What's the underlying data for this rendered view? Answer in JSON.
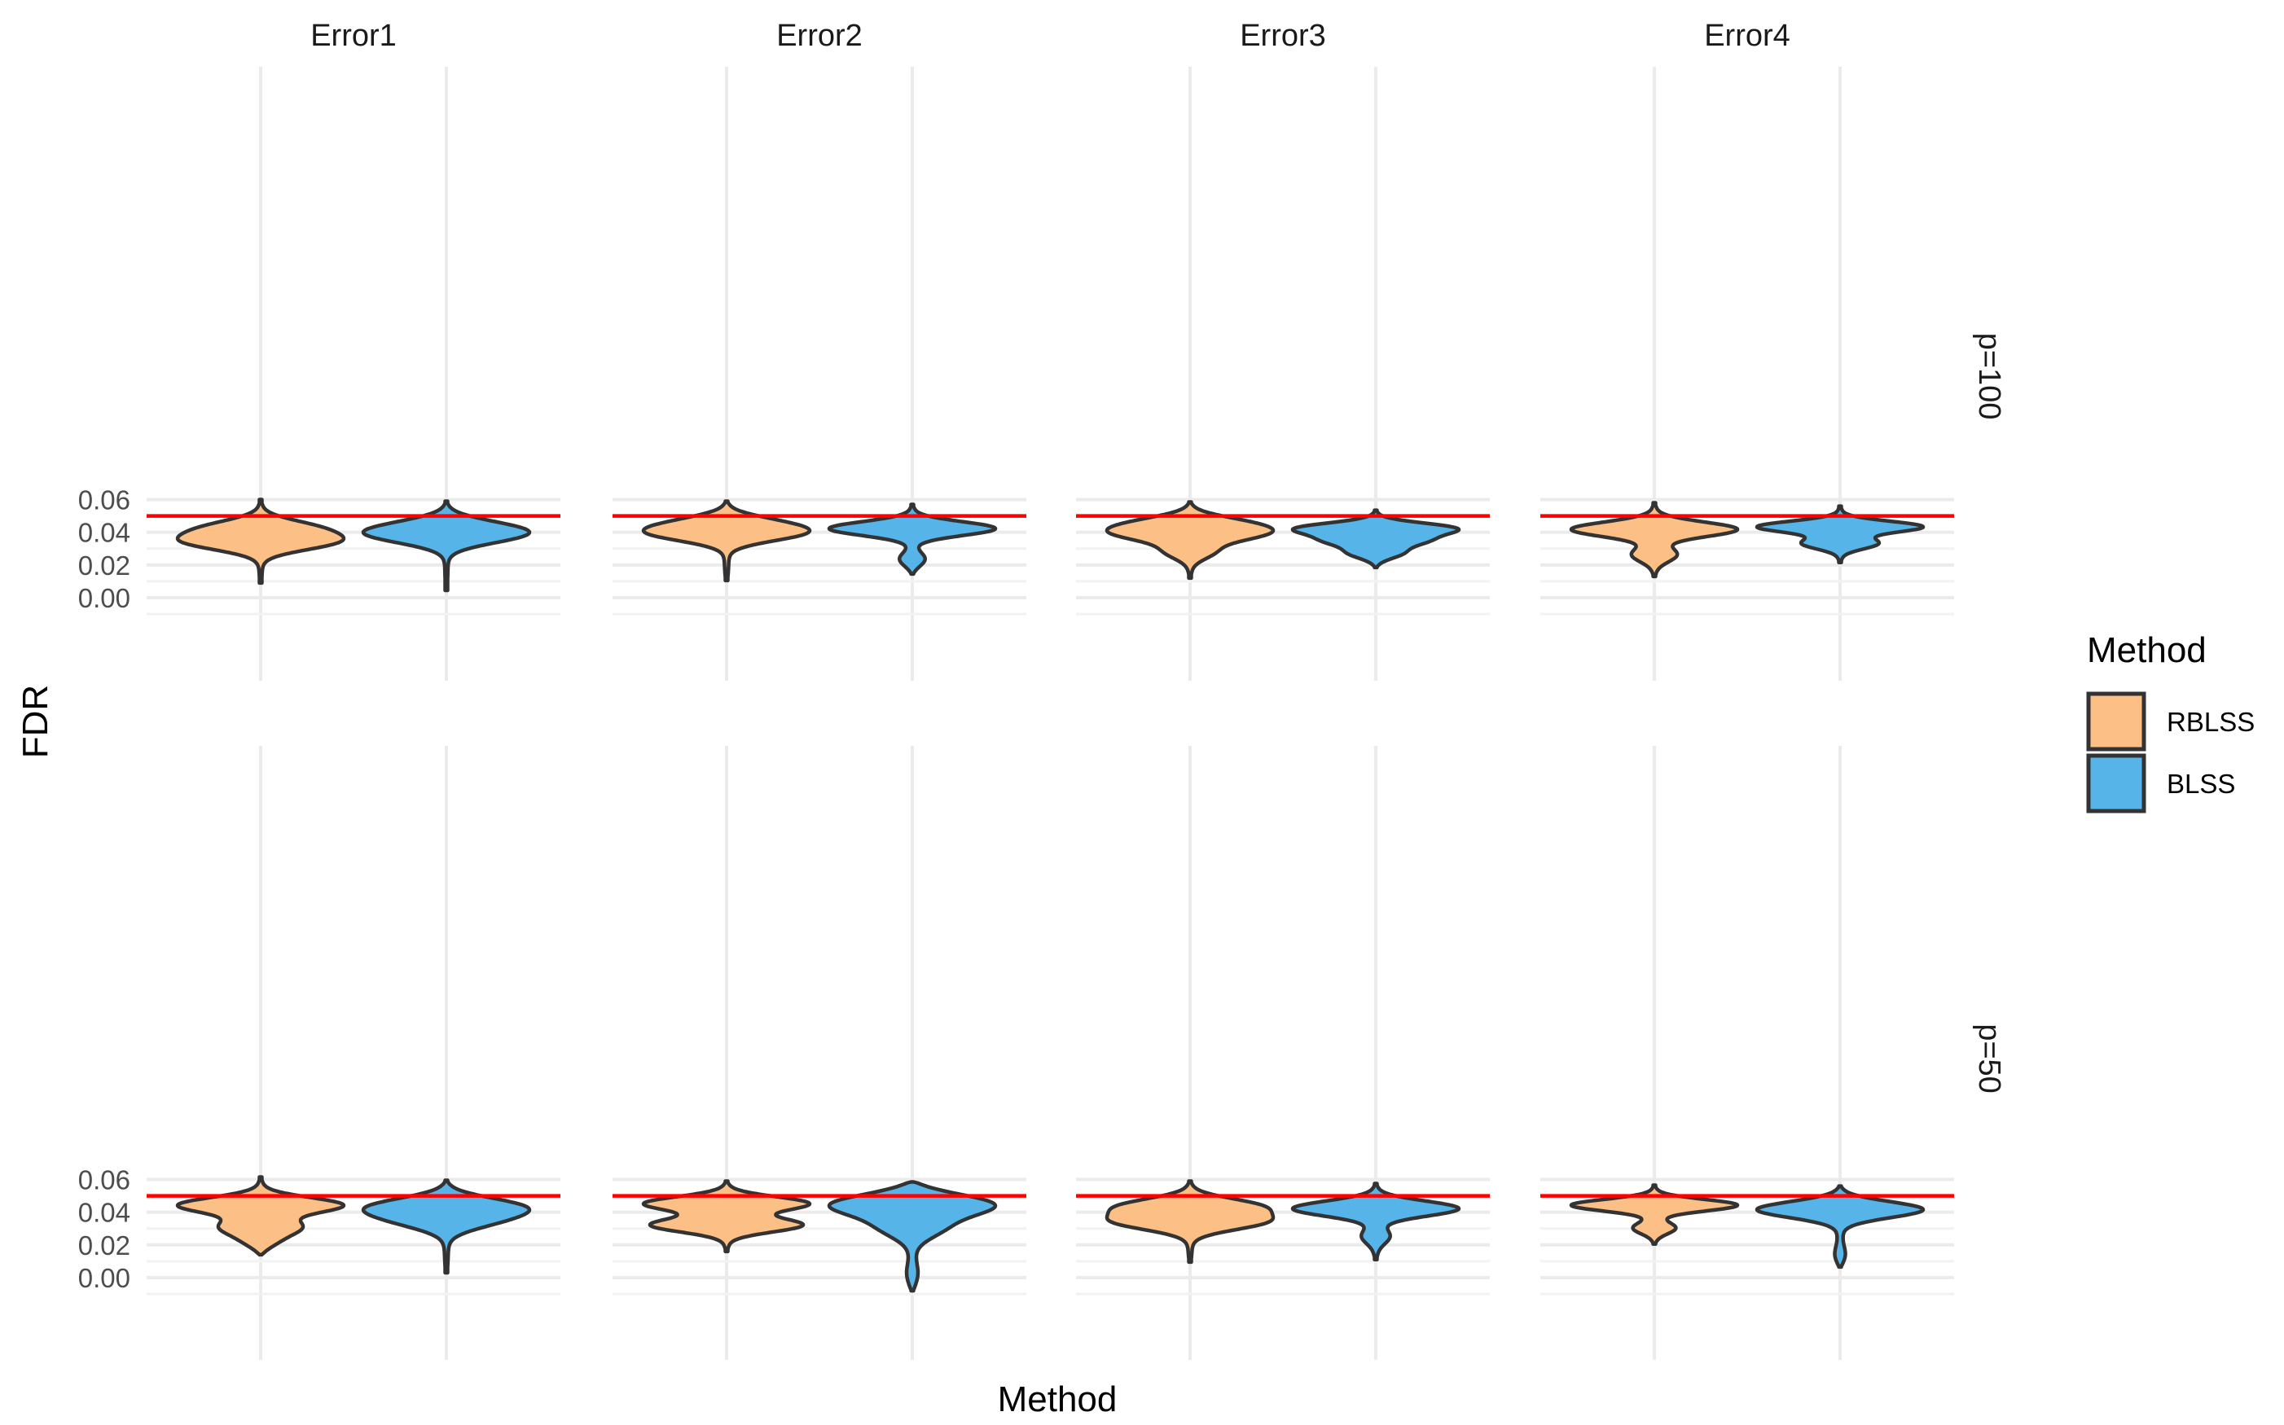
{
  "chart_data": {
    "type": "violin",
    "xlabel": "Method",
    "ylabel": "FDR",
    "ylim": [
      -0.01,
      0.0625
    ],
    "yticks": [
      "0.00",
      "0.02",
      "0.04",
      "0.06"
    ],
    "categories": [
      "RBLSS",
      "BLSS"
    ],
    "column_facets": [
      "Error1",
      "Error2",
      "Error3",
      "Error4"
    ],
    "row_facets": [
      "p=100",
      "p=50"
    ],
    "reference_line": {
      "value": 0.05,
      "color": "#FF0000"
    },
    "legend": {
      "title": "Method",
      "position": "right",
      "entries": [
        {
          "label": "RBLSS",
          "color": "#FCBF86"
        },
        {
          "label": "BLSS",
          "color": "#56B4E9"
        }
      ]
    },
    "panels": [
      {
        "row": "p=100",
        "col": "Error1",
        "violins": [
          {
            "method": "RBLSS",
            "min": 0.009,
            "max": 0.06,
            "modes": [
              [
                0.034,
                1.0
              ],
              [
                0.043,
                0.75
              ]
            ]
          },
          {
            "method": "BLSS",
            "min": 0.0045,
            "max": 0.059,
            "modes": [
              [
                0.038,
                1.0
              ],
              [
                0.044,
                0.75
              ]
            ]
          }
        ]
      },
      {
        "row": "p=100",
        "col": "Error2",
        "violins": [
          {
            "method": "RBLSS",
            "min": 0.0105,
            "max": 0.059,
            "modes": [
              [
                0.039,
                0.75
              ],
              [
                0.046,
                0.55
              ]
            ]
          },
          {
            "method": "BLSS",
            "min": 0.0145,
            "max": 0.057,
            "modes": [
              [
                0.0425,
                1.0
              ],
              [
                0.023,
                0.15
              ]
            ]
          }
        ]
      },
      {
        "row": "p=100",
        "col": "Error3",
        "violins": [
          {
            "method": "RBLSS",
            "min": 0.012,
            "max": 0.0585,
            "modes": [
              [
                0.039,
                0.8
              ],
              [
                0.046,
                0.65
              ],
              [
                0.028,
                0.3
              ]
            ]
          },
          {
            "method": "BLSS",
            "min": 0.0185,
            "max": 0.0535,
            "modes": [
              [
                0.0425,
                0.9
              ],
              [
                0.035,
                0.5
              ],
              [
                0.027,
                0.3
              ]
            ]
          }
        ]
      },
      {
        "row": "p=100",
        "col": "Error4",
        "violins": [
          {
            "method": "RBLSS",
            "min": 0.013,
            "max": 0.058,
            "modes": [
              [
                0.042,
                0.95
              ],
              [
                0.026,
                0.25
              ]
            ]
          },
          {
            "method": "BLSS",
            "min": 0.0215,
            "max": 0.056,
            "modes": [
              [
                0.0435,
                1.0
              ],
              [
                0.033,
                0.45
              ]
            ]
          }
        ]
      },
      {
        "row": "p=50",
        "col": "Error1",
        "violins": [
          {
            "method": "RBLSS",
            "min": 0.014,
            "max": 0.0615,
            "modes": [
              [
                0.0445,
                1.0
              ],
              [
                0.031,
                0.45
              ],
              [
                0.022,
                0.2
              ]
            ]
          },
          {
            "method": "BLSS",
            "min": 0.003,
            "max": 0.0595,
            "modes": [
              [
                0.044,
                1.0
              ],
              [
                0.035,
                0.55
              ]
            ]
          }
        ]
      },
      {
        "row": "p=50",
        "col": "Error2",
        "violins": [
          {
            "method": "RBLSS",
            "min": 0.016,
            "max": 0.059,
            "modes": [
              [
                0.0455,
                0.9
              ],
              [
                0.032,
                0.8
              ]
            ]
          },
          {
            "method": "BLSS",
            "min": -0.008,
            "max": 0.0585,
            "modes": [
              [
                0.0455,
                1.0
              ],
              [
                0.031,
                0.3
              ],
              [
                0.001,
                0.05
              ]
            ]
          }
        ]
      },
      {
        "row": "p=50",
        "col": "Error3",
        "violins": [
          {
            "method": "RBLSS",
            "min": 0.0095,
            "max": 0.059,
            "modes": [
              [
                0.044,
                0.8
              ],
              [
                0.034,
                0.8
              ]
            ]
          },
          {
            "method": "BLSS",
            "min": 0.011,
            "max": 0.0575,
            "modes": [
              [
                0.0425,
                1.0
              ],
              [
                0.025,
                0.15
              ]
            ]
          }
        ]
      },
      {
        "row": "p=50",
        "col": "Error4",
        "violins": [
          {
            "method": "RBLSS",
            "min": 0.0205,
            "max": 0.0565,
            "modes": [
              [
                0.0445,
                1.0
              ],
              [
                0.03,
                0.25
              ]
            ]
          },
          {
            "method": "BLSS",
            "min": 0.0065,
            "max": 0.056,
            "modes": [
              [
                0.042,
                1.0
              ],
              [
                0.013,
                0.05
              ]
            ]
          }
        ]
      }
    ]
  }
}
